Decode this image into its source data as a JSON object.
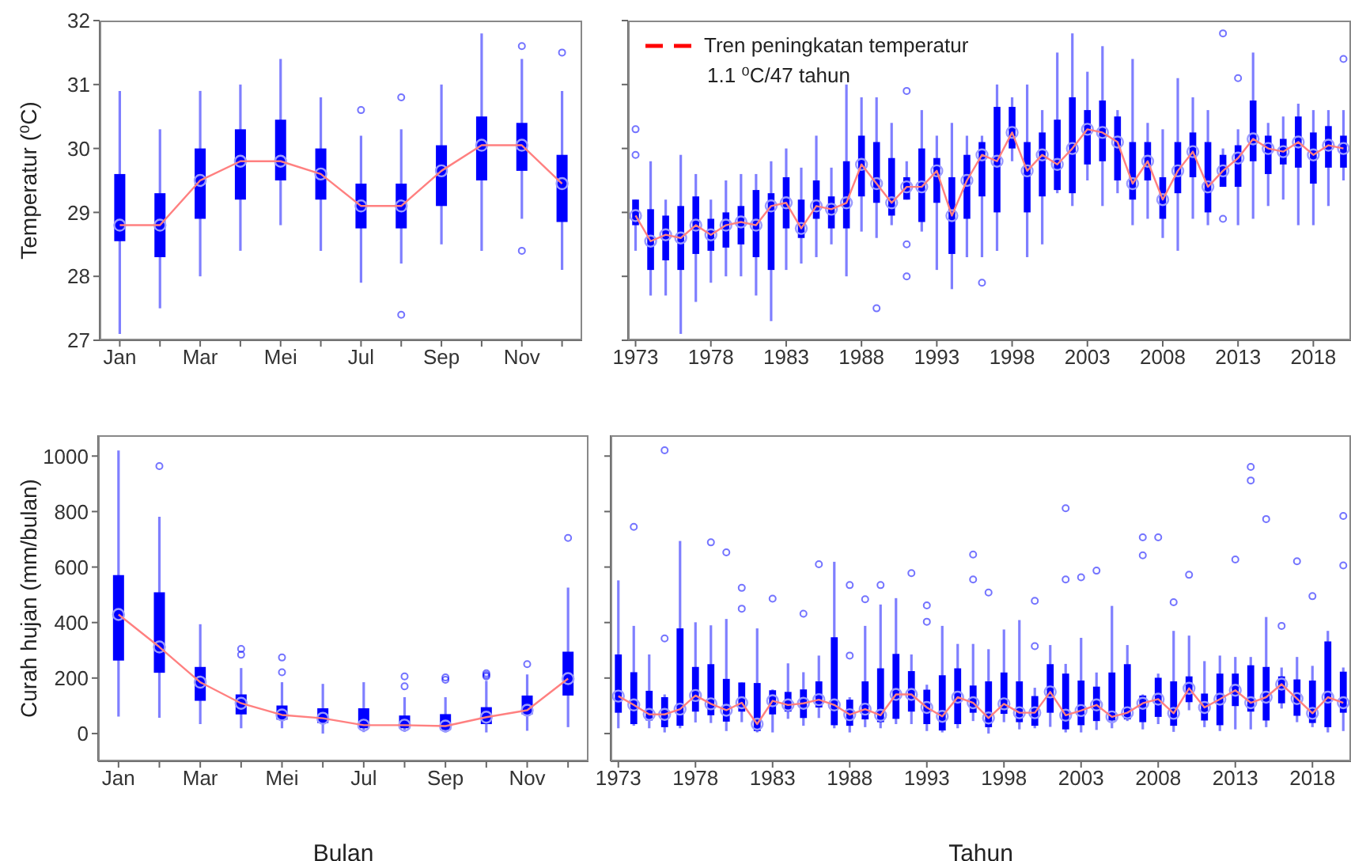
{
  "chart_data": [
    {
      "type": "box",
      "ylabel": "Temperatur (⁰C)",
      "categories": [
        "Jan",
        null,
        "Mar",
        null,
        "Mei",
        null,
        "Jul",
        null,
        "Sep",
        null,
        "Nov",
        null
      ],
      "ylim": [
        27,
        32
      ],
      "yticks": [
        27,
        28,
        29,
        30,
        31,
        32
      ],
      "series": [
        {
          "type": "box",
          "color": "#0000ff",
          "boxes": [
            {
              "low": 27.1,
              "q1": 28.55,
              "median": 28.8,
              "q3": 29.6,
              "high": 30.9
            },
            {
              "low": 27.5,
              "q1": 28.3,
              "median": 28.8,
              "q3": 29.3,
              "high": 30.3
            },
            {
              "low": 28.0,
              "q1": 28.9,
              "median": 29.5,
              "q3": 30.0,
              "high": 30.9
            },
            {
              "low": 28.4,
              "q1": 29.2,
              "median": 29.8,
              "q3": 30.3,
              "high": 31.0
            },
            {
              "low": 28.8,
              "q1": 29.5,
              "median": 29.8,
              "q3": 30.45,
              "high": 31.4
            },
            {
              "low": 28.4,
              "q1": 29.2,
              "median": 29.6,
              "q3": 30.0,
              "high": 30.8
            },
            {
              "low": 27.9,
              "q1": 28.75,
              "median": 29.1,
              "q3": 29.45,
              "high": 30.2,
              "outliers": [
                30.6
              ]
            },
            {
              "low": 28.2,
              "q1": 28.75,
              "median": 29.1,
              "q3": 29.45,
              "high": 30.3,
              "outliers": [
                30.8,
                27.4
              ]
            },
            {
              "low": 28.5,
              "q1": 29.1,
              "median": 29.65,
              "q3": 30.05,
              "high": 31.0
            },
            {
              "low": 28.4,
              "q1": 29.5,
              "median": 30.05,
              "q3": 30.5,
              "high": 31.8
            },
            {
              "low": 28.9,
              "q1": 29.65,
              "median": 30.05,
              "q3": 30.4,
              "high": 31.4,
              "outliers": [
                31.6,
                28.4
              ]
            },
            {
              "low": 28.1,
              "q1": 28.85,
              "median": 29.45,
              "q3": 29.9,
              "high": 30.9,
              "outliers": [
                31.5
              ]
            }
          ]
        },
        {
          "type": "line",
          "color": "#ff8080",
          "values": [
            28.8,
            28.8,
            29.5,
            29.8,
            29.8,
            29.6,
            29.1,
            29.1,
            29.65,
            30.05,
            30.05,
            29.45
          ]
        }
      ]
    },
    {
      "type": "box",
      "annotations": [
        "Tren peningkatan temperatur",
        "1.1 ⁰C/47 tahun"
      ],
      "x": [
        1973,
        1974,
        1975,
        1976,
        1977,
        1978,
        1979,
        1980,
        1981,
        1982,
        1983,
        1984,
        1985,
        1986,
        1987,
        1988,
        1989,
        1990,
        1991,
        1992,
        1993,
        1994,
        1995,
        1996,
        1997,
        1998,
        1999,
        2000,
        2001,
        2002,
        2003,
        2004,
        2005,
        2006,
        2007,
        2008,
        2009,
        2010,
        2011,
        2012,
        2013,
        2014,
        2015,
        2016,
        2017,
        2018,
        2019,
        2020
      ],
      "xlim": [
        1972.5,
        2020.5
      ],
      "xticks": [
        1973,
        1978,
        1983,
        1988,
        1993,
        1998,
        2003,
        2008,
        2013,
        2018
      ],
      "ylim": [
        27,
        32
      ],
      "yticks": [
        27,
        28,
        29,
        30,
        31,
        32
      ],
      "tick_labels": "x",
      "series": [
        {
          "type": "box",
          "color": "#0000ff",
          "boxes": [
            {
              "low": 28.4,
              "q1": 28.8,
              "median": 28.95,
              "q3": 29.2,
              "high": 29.2,
              "outliers": [
                30.3,
                29.9
              ]
            },
            {
              "low": 27.7,
              "q1": 28.1,
              "median": 28.55,
              "q3": 29.05,
              "high": 29.8
            },
            {
              "low": 27.7,
              "q1": 28.25,
              "median": 28.65,
              "q3": 28.95,
              "high": 29.2
            },
            {
              "low": 27.1,
              "q1": 28.1,
              "median": 28.6,
              "q3": 29.1,
              "high": 29.9
            },
            {
              "low": 27.6,
              "q1": 28.35,
              "median": 28.8,
              "q3": 29.25,
              "high": 29.6
            },
            {
              "low": 27.9,
              "q1": 28.4,
              "median": 28.65,
              "q3": 28.9,
              "high": 29.2
            },
            {
              "low": 28.0,
              "q1": 28.45,
              "median": 28.8,
              "q3": 29.0,
              "high": 29.5
            },
            {
              "low": 28.0,
              "q1": 28.5,
              "median": 28.85,
              "q3": 29.1,
              "high": 29.6
            },
            {
              "low": 27.7,
              "q1": 28.3,
              "median": 28.8,
              "q3": 29.35,
              "high": 29.6
            },
            {
              "low": 27.3,
              "q1": 28.1,
              "median": 29.1,
              "q3": 29.3,
              "high": 29.8
            },
            {
              "low": 28.1,
              "q1": 28.75,
              "median": 29.15,
              "q3": 29.55,
              "high": 30.0
            },
            {
              "low": 28.2,
              "q1": 28.6,
              "median": 28.75,
              "q3": 29.2,
              "high": 29.7
            },
            {
              "low": 28.3,
              "q1": 28.9,
              "median": 29.1,
              "q3": 29.5,
              "high": 30.2
            },
            {
              "low": 28.5,
              "q1": 28.75,
              "median": 29.05,
              "q3": 29.25,
              "high": 29.7
            },
            {
              "low": 28.0,
              "q1": 28.75,
              "median": 29.15,
              "q3": 29.8,
              "high": 31.0
            },
            {
              "low": 28.7,
              "q1": 29.25,
              "median": 29.75,
              "q3": 30.2,
              "high": 30.8
            },
            {
              "low": 28.6,
              "q1": 29.15,
              "median": 29.45,
              "q3": 30.1,
              "high": 30.8,
              "outliers": [
                27.5
              ]
            },
            {
              "low": 28.8,
              "q1": 28.95,
              "median": 29.15,
              "q3": 29.85,
              "high": 30.4
            },
            {
              "low": 29.2,
              "q1": 29.2,
              "median": 29.4,
              "q3": 29.55,
              "high": 29.8,
              "outliers": [
                30.9,
                28.5,
                28.0
              ]
            },
            {
              "low": 28.7,
              "q1": 28.85,
              "median": 29.4,
              "q3": 30.0,
              "high": 30.6
            },
            {
              "low": 28.1,
              "q1": 29.15,
              "median": 29.65,
              "q3": 29.85,
              "high": 30.2
            },
            {
              "low": 27.8,
              "q1": 28.35,
              "median": 28.95,
              "q3": 29.55,
              "high": 30.4
            },
            {
              "low": 28.3,
              "q1": 28.9,
              "median": 29.5,
              "q3": 29.9,
              "high": 30.2
            },
            {
              "low": 28.3,
              "q1": 29.25,
              "median": 29.9,
              "q3": 30.1,
              "high": 30.2,
              "outliers": [
                27.9
              ]
            },
            {
              "low": 28.4,
              "q1": 29.0,
              "median": 29.8,
              "q3": 30.65,
              "high": 31.0
            },
            {
              "low": 29.8,
              "q1": 30.0,
              "median": 30.25,
              "q3": 30.65,
              "high": 30.8
            },
            {
              "low": 28.3,
              "q1": 29.0,
              "median": 29.65,
              "q3": 30.1,
              "high": 31.0
            },
            {
              "low": 28.5,
              "q1": 29.25,
              "median": 29.9,
              "q3": 30.25,
              "high": 30.6
            },
            {
              "low": 29.3,
              "q1": 29.35,
              "median": 29.75,
              "q3": 30.45,
              "high": 31.5
            },
            {
              "low": 29.1,
              "q1": 29.3,
              "median": 30.0,
              "q3": 30.8,
              "high": 31.8
            },
            {
              "low": 29.5,
              "q1": 29.75,
              "median": 30.3,
              "q3": 30.6,
              "high": 31.2
            },
            {
              "low": 29.1,
              "q1": 29.8,
              "median": 30.25,
              "q3": 30.75,
              "high": 31.6
            },
            {
              "low": 29.3,
              "q1": 29.5,
              "median": 30.1,
              "q3": 30.5,
              "high": 30.6
            },
            {
              "low": 28.8,
              "q1": 29.2,
              "median": 29.45,
              "q3": 30.1,
              "high": 31.4
            },
            {
              "low": 28.9,
              "q1": 29.5,
              "median": 29.8,
              "q3": 30.1,
              "high": 30.4
            },
            {
              "low": 28.6,
              "q1": 28.9,
              "median": 29.2,
              "q3": 29.55,
              "high": 30.3
            },
            {
              "low": 28.4,
              "q1": 29.3,
              "median": 29.65,
              "q3": 30.1,
              "high": 31.1
            },
            {
              "low": 28.9,
              "q1": 29.55,
              "median": 29.95,
              "q3": 30.25,
              "high": 30.8
            },
            {
              "low": 28.8,
              "q1": 29.0,
              "median": 29.4,
              "q3": 30.1,
              "high": 30.6
            },
            {
              "low": 29.4,
              "q1": 29.4,
              "median": 29.65,
              "q3": 29.9,
              "high": 30.0,
              "outliers": [
                31.8,
                28.9
              ]
            },
            {
              "low": 28.8,
              "q1": 29.4,
              "median": 29.85,
              "q3": 30.05,
              "high": 30.3,
              "outliers": [
                31.1
              ]
            },
            {
              "low": 28.9,
              "q1": 29.8,
              "median": 30.15,
              "q3": 30.75,
              "high": 31.5
            },
            {
              "low": 29.1,
              "q1": 29.6,
              "median": 30.0,
              "q3": 30.2,
              "high": 30.4
            },
            {
              "low": 29.2,
              "q1": 29.75,
              "median": 29.95,
              "q3": 30.15,
              "high": 30.5
            },
            {
              "low": 28.8,
              "q1": 29.7,
              "median": 30.1,
              "q3": 30.5,
              "high": 30.7
            },
            {
              "low": 28.8,
              "q1": 29.45,
              "median": 29.9,
              "q3": 30.25,
              "high": 30.6
            },
            {
              "low": 29.1,
              "q1": 29.7,
              "median": 30.05,
              "q3": 30.35,
              "high": 30.6
            },
            {
              "low": 29.5,
              "q1": 29.7,
              "median": 30.0,
              "q3": 30.2,
              "high": 30.6,
              "outliers": [
                31.4
              ]
            }
          ]
        },
        {
          "type": "line",
          "color": "#ff8080",
          "values": [
            28.95,
            28.55,
            28.65,
            28.6,
            28.8,
            28.65,
            28.8,
            28.85,
            28.8,
            29.1,
            29.15,
            28.75,
            29.1,
            29.05,
            29.15,
            29.75,
            29.45,
            29.15,
            29.4,
            29.4,
            29.65,
            28.95,
            29.5,
            29.9,
            29.8,
            30.25,
            29.65,
            29.9,
            29.75,
            30.0,
            30.3,
            30.25,
            30.1,
            29.45,
            29.8,
            29.2,
            29.65,
            29.95,
            29.4,
            29.65,
            29.85,
            30.15,
            30.0,
            29.95,
            30.1,
            29.9,
            30.05,
            30.0
          ]
        }
      ]
    },
    {
      "type": "box",
      "ylabel": "Curah hujan (mm/bulan)",
      "xlabel": "Bulan",
      "categories": [
        "Jan",
        null,
        "Mar",
        null,
        "Mei",
        null,
        "Jul",
        null,
        "Sep",
        null,
        "Nov",
        null
      ],
      "ylim": [
        -100,
        1075
      ],
      "yticks": [
        0,
        200,
        400,
        600,
        800,
        1000
      ],
      "series": [
        {
          "type": "box",
          "color": "#0000ff",
          "boxes": [
            {
              "low": 61,
              "q1": 263,
              "median": 429,
              "q3": 571,
              "high": 1020
            },
            {
              "low": 57,
              "q1": 219,
              "median": 312,
              "q3": 509,
              "high": 781,
              "outliers": [
                964
              ]
            },
            {
              "low": 34,
              "q1": 118,
              "median": 185,
              "q3": 240,
              "high": 394
            },
            {
              "low": 19,
              "q1": 69,
              "median": 109,
              "q3": 141,
              "high": 236,
              "outliers": [
                305,
                284
              ]
            },
            {
              "low": 19,
              "q1": 50,
              "median": 67,
              "q3": 101,
              "high": 185,
              "outliers": [
                274,
                221
              ]
            },
            {
              "low": 0,
              "q1": 38,
              "median": 55,
              "q3": 91,
              "high": 179
            },
            {
              "low": 5,
              "q1": 19,
              "median": 30,
              "q3": 91,
              "high": 185
            },
            {
              "low": 6,
              "q1": 19,
              "median": 30,
              "q3": 65,
              "high": 131,
              "outliers": [
                170,
                206
              ]
            },
            {
              "low": 4,
              "q1": 13,
              "median": 27,
              "q3": 70,
              "high": 131,
              "outliers": [
                194,
                202
              ]
            },
            {
              "low": 4,
              "q1": 34,
              "median": 59,
              "q3": 95,
              "high": 190,
              "outliers": [
                217,
                211,
                206
              ]
            },
            {
              "low": 10,
              "q1": 69,
              "median": 84,
              "q3": 137,
              "high": 213,
              "outliers": [
                250
              ]
            },
            {
              "low": 23,
              "q1": 137,
              "median": 198,
              "q3": 295,
              "high": 526,
              "outliers": [
                705
              ]
            }
          ]
        },
        {
          "type": "line",
          "color": "#ff8080",
          "values": [
            429,
            312,
            185,
            109,
            67,
            55,
            30,
            30,
            27,
            59,
            84,
            198
          ]
        }
      ]
    },
    {
      "type": "box",
      "xlabel": "Tahun",
      "x": [
        1973,
        1974,
        1975,
        1976,
        1977,
        1978,
        1979,
        1980,
        1981,
        1982,
        1983,
        1984,
        1985,
        1986,
        1987,
        1988,
        1989,
        1990,
        1991,
        1992,
        1993,
        1994,
        1995,
        1996,
        1997,
        1998,
        1999,
        2000,
        2001,
        2002,
        2003,
        2004,
        2005,
        2006,
        2007,
        2008,
        2009,
        2010,
        2011,
        2012,
        2013,
        2014,
        2015,
        2016,
        2017,
        2018,
        2019,
        2020
      ],
      "xlim": [
        1972.5,
        2020.5
      ],
      "xticks": [
        1973,
        1978,
        1983,
        1988,
        1993,
        1998,
        2003,
        2008,
        2013,
        2018
      ],
      "ylim": [
        -100,
        1075
      ],
      "yticks": [
        0,
        200,
        400,
        600,
        800,
        1000
      ],
      "tick_labels": "x",
      "series": [
        {
          "type": "box",
          "color": "#0000ff",
          "boxes": [
            {
              "low": 19,
              "q1": 75,
              "median": 135,
              "q3": 285,
              "high": 552
            },
            {
              "low": 28,
              "q1": 34,
              "median": 103,
              "q3": 221,
              "high": 388,
              "outliers": [
                745
              ]
            },
            {
              "low": 19,
              "q1": 47,
              "median": 69,
              "q3": 154,
              "high": 285
            },
            {
              "low": 4,
              "q1": 23,
              "median": 69,
              "q3": 131,
              "high": 141,
              "outliers": [
                1021,
                343
              ]
            },
            {
              "low": 19,
              "q1": 28,
              "median": 88,
              "q3": 379,
              "high": 694
            },
            {
              "low": 40,
              "q1": 79,
              "median": 137,
              "q3": 240,
              "high": 401
            },
            {
              "low": 38,
              "q1": 66,
              "median": 107,
              "q3": 250,
              "high": 390,
              "outliers": [
                689
              ]
            },
            {
              "low": 9,
              "q1": 43,
              "median": 84,
              "q3": 197,
              "high": 413,
              "outliers": [
                653
              ]
            },
            {
              "low": 41,
              "q1": 79,
              "median": 111,
              "q3": 184,
              "high": 184,
              "outliers": [
                525,
                450
              ]
            },
            {
              "low": 4,
              "q1": 9,
              "median": 34,
              "q3": 182,
              "high": 379
            },
            {
              "low": 4,
              "q1": 69,
              "median": 118,
              "q3": 156,
              "high": 159,
              "outliers": [
                486
              ]
            },
            {
              "low": 53,
              "q1": 79,
              "median": 103,
              "q3": 150,
              "high": 253
            },
            {
              "low": 28,
              "q1": 56,
              "median": 109,
              "q3": 159,
              "high": 221,
              "outliers": [
                432
              ]
            },
            {
              "low": 56,
              "q1": 94,
              "median": 122,
              "q3": 188,
              "high": 281,
              "outliers": [
                610
              ]
            },
            {
              "low": 19,
              "q1": 30,
              "median": 103,
              "q3": 347,
              "high": 619
            },
            {
              "low": 4,
              "q1": 28,
              "median": 68,
              "q3": 122,
              "high": 131,
              "outliers": [
                535,
                281
              ]
            },
            {
              "low": 23,
              "q1": 51,
              "median": 88,
              "q3": 188,
              "high": 388,
              "outliers": [
                484
              ]
            },
            {
              "low": 19,
              "q1": 41,
              "median": 66,
              "q3": 235,
              "high": 465,
              "outliers": [
                535
              ]
            },
            {
              "low": 34,
              "q1": 53,
              "median": 141,
              "q3": 287,
              "high": 488
            },
            {
              "low": 34,
              "q1": 79,
              "median": 141,
              "q3": 225,
              "high": 285,
              "outliers": [
                578
              ]
            },
            {
              "low": 9,
              "q1": 34,
              "median": 94,
              "q3": 158,
              "high": 176,
              "outliers": [
                462,
                403
              ]
            },
            {
              "low": 4,
              "q1": 11,
              "median": 62,
              "q3": 210,
              "high": 388
            },
            {
              "low": 19,
              "q1": 34,
              "median": 131,
              "q3": 235,
              "high": 323
            },
            {
              "low": 45,
              "q1": 75,
              "median": 111,
              "q3": 173,
              "high": 323,
              "outliers": [
                645,
                555
              ]
            },
            {
              "low": 0,
              "q1": 23,
              "median": 56,
              "q3": 188,
              "high": 304,
              "outliers": [
                508
              ]
            },
            {
              "low": 41,
              "q1": 71,
              "median": 107,
              "q3": 220,
              "high": 375
            },
            {
              "low": 15,
              "q1": 41,
              "median": 75,
              "q3": 188,
              "high": 409
            },
            {
              "low": 19,
              "q1": 28,
              "median": 75,
              "q3": 135,
              "high": 165,
              "outliers": [
                478,
                315
              ]
            },
            {
              "low": 24,
              "q1": 75,
              "median": 150,
              "q3": 250,
              "high": 319
            },
            {
              "low": 4,
              "q1": 15,
              "median": 66,
              "q3": 216,
              "high": 251,
              "outliers": [
                812,
                555
              ]
            },
            {
              "low": 4,
              "q1": 30,
              "median": 83,
              "q3": 191,
              "high": 345,
              "outliers": [
                563
              ]
            },
            {
              "low": 13,
              "q1": 45,
              "median": 103,
              "q3": 169,
              "high": 220,
              "outliers": [
                587
              ]
            },
            {
              "low": 19,
              "q1": 47,
              "median": 60,
              "q3": 220,
              "high": 460
            },
            {
              "low": 45,
              "q1": 51,
              "median": 75,
              "q3": 250,
              "high": 319
            },
            {
              "low": 15,
              "q1": 41,
              "median": 109,
              "q3": 137,
              "high": 141,
              "outliers": [
                707,
                642
              ]
            },
            {
              "low": 34,
              "q1": 60,
              "median": 124,
              "q3": 201,
              "high": 216,
              "outliers": [
                707
              ]
            },
            {
              "low": 6,
              "q1": 28,
              "median": 73,
              "q3": 188,
              "high": 370,
              "outliers": [
                473
              ]
            },
            {
              "low": 84,
              "q1": 113,
              "median": 163,
              "q3": 206,
              "high": 353,
              "outliers": [
                572
              ]
            },
            {
              "low": 23,
              "q1": 47,
              "median": 94,
              "q3": 144,
              "high": 261
            },
            {
              "low": 9,
              "q1": 30,
              "median": 124,
              "q3": 216,
              "high": 281
            },
            {
              "low": 15,
              "q1": 99,
              "median": 156,
              "q3": 216,
              "high": 276,
              "outliers": [
                627
              ]
            },
            {
              "low": 15,
              "q1": 79,
              "median": 111,
              "q3": 246,
              "high": 276,
              "outliers": [
                961,
                912
              ]
            },
            {
              "low": 23,
              "q1": 47,
              "median": 131,
              "q3": 240,
              "high": 420,
              "outliers": [
                773
              ]
            },
            {
              "low": 90,
              "q1": 109,
              "median": 178,
              "q3": 206,
              "high": 238,
              "outliers": [
                388
              ]
            },
            {
              "low": 41,
              "q1": 64,
              "median": 126,
              "q3": 195,
              "high": 276,
              "outliers": [
                621
              ]
            },
            {
              "low": 23,
              "q1": 38,
              "median": 73,
              "q3": 191,
              "high": 244,
              "outliers": [
                495
              ]
            },
            {
              "low": 4,
              "q1": 23,
              "median": 131,
              "q3": 332,
              "high": 370
            },
            {
              "low": 9,
              "q1": 75,
              "median": 111,
              "q3": 223,
              "high": 238,
              "outliers": [
                784,
                606
              ]
            }
          ]
        },
        {
          "type": "line",
          "color": "#ff8080",
          "values": [
            135,
            103,
            69,
            69,
            88,
            137,
            107,
            84,
            111,
            34,
            118,
            103,
            109,
            122,
            103,
            68,
            88,
            66,
            141,
            141,
            94,
            62,
            131,
            111,
            56,
            107,
            75,
            75,
            150,
            66,
            83,
            103,
            60,
            75,
            109,
            124,
            73,
            163,
            94,
            124,
            156,
            111,
            131,
            178,
            126,
            73,
            131,
            111
          ]
        }
      ]
    }
  ]
}
